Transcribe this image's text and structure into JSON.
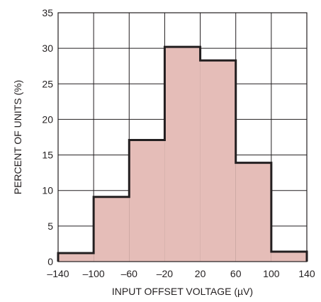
{
  "chart_data": {
    "type": "bar",
    "title": "",
    "xlabel": "INPUT OFFSET VOLTAGE (µV)",
    "ylabel": "PERCENT OF UNITS (%)",
    "bin_edges": [
      -140,
      -100,
      -60,
      -20,
      20,
      60,
      100,
      140
    ],
    "x_tick_labels": [
      "–140",
      "–100",
      "–60",
      "–20",
      "20",
      "60",
      "100",
      "140"
    ],
    "y_ticks": [
      0,
      5,
      10,
      15,
      20,
      25,
      30,
      35
    ],
    "values": [
      1.2,
      9.1,
      17.1,
      30.2,
      28.3,
      13.9,
      1.4
    ],
    "xlim": [
      -140,
      140
    ],
    "ylim": [
      0,
      35
    ],
    "grid": true,
    "colors": {
      "fill": "#e5bdb8",
      "outline": "#231f20",
      "grid": "#231f20"
    }
  }
}
